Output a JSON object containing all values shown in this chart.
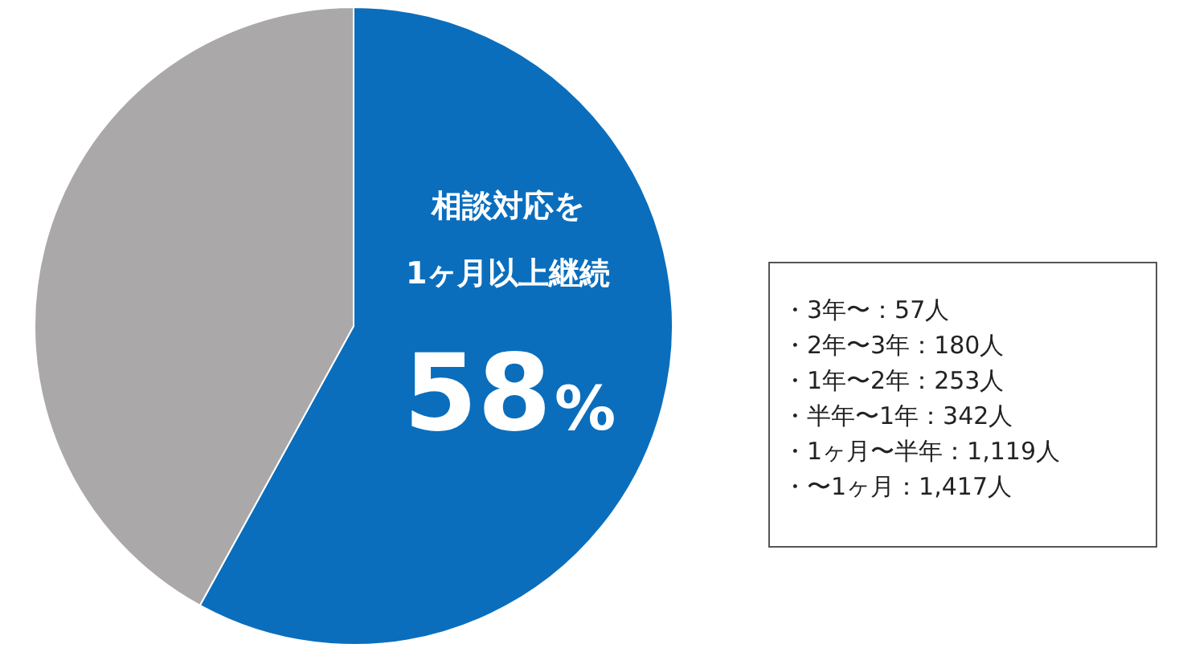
{
  "chart_data": {
    "type": "pie",
    "categories": [
      "相談対応を\n1ヶ月以上継続",
      null
    ],
    "values": [
      58,
      42
    ],
    "colors": [
      "#0a6ebd",
      "#aaa8a8"
    ],
    "value_labels": [
      "58%",
      null
    ],
    "legend": false,
    "annotations": [
      "・3年〜：57人",
      "・2年〜3年：180人",
      "・1年〜2年：253人",
      "・半年〜1年：342人",
      "・1ヶ月〜半年：1,119人",
      "・〜1ヶ月：1,417人"
    ]
  }
}
